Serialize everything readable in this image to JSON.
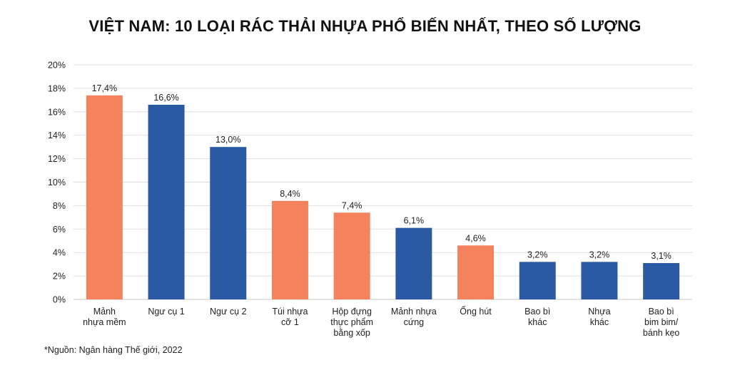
{
  "title": "VIỆT NAM: 10 LOẠI RÁC THẢI NHỰA PHỔ BIẾN NHẤT, THEO SỐ LƯỢNG",
  "source": "*Nguồn: Ngân hàng Thế giới, 2022",
  "colors": {
    "orange": "#F4825C",
    "blue": "#2B59A4",
    "grid": "#dddddd"
  },
  "chart_data": {
    "type": "bar",
    "title": "VIỆT NAM: 10 LOẠI RÁC THẢI NHỰA PHỔ BIẾN NHẤT, THEO SỐ LƯỢNG",
    "xlabel": "",
    "ylabel": "",
    "ylim": [
      0,
      20
    ],
    "yticks": [
      "0%",
      "2%",
      "4%",
      "6%",
      "8%",
      "10%",
      "12%",
      "14%",
      "16%",
      "18%",
      "20%"
    ],
    "grid": true,
    "categories": [
      [
        "Mảnh",
        "nhựa mềm"
      ],
      [
        "Ngư cụ 1"
      ],
      [
        "Ngư cụ 2"
      ],
      [
        "Túi nhựa",
        "cỡ 1"
      ],
      [
        "Hộp đựng",
        "thực phẩm",
        "bằng xốp"
      ],
      [
        "Mảnh nhựa",
        "cứng"
      ],
      [
        "Ống hút"
      ],
      [
        "Bao bì",
        "khác"
      ],
      [
        "Nhựa",
        "khác"
      ],
      [
        "Bao bì",
        "bim bim/",
        "bánh kẹo"
      ]
    ],
    "values": [
      17.4,
      16.6,
      13.0,
      8.4,
      7.4,
      6.1,
      4.6,
      3.2,
      3.2,
      3.1
    ],
    "value_labels": [
      "17,4%",
      "16,6%",
      "13,0%",
      "8,4%",
      "7,4%",
      "6,1%",
      "4,6%",
      "3,2%",
      "3,2%",
      "3,1%"
    ],
    "bar_colors": [
      "orange",
      "blue",
      "blue",
      "orange",
      "orange",
      "blue",
      "orange",
      "blue",
      "blue",
      "blue"
    ]
  }
}
